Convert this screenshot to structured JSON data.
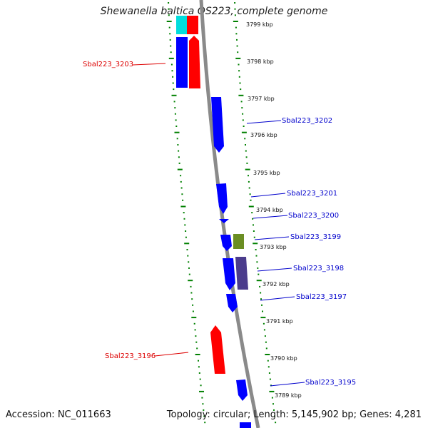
{
  "title": "Shewanella baltica OS223, complete genome",
  "accession_text": "Accession: NC_011663",
  "summary_text": "Topology: circular; Length: 5,145,902 bp; Genes: 4,281",
  "kbp_labels": [
    "3799 kbp",
    "3798 kbp",
    "3797 kbp",
    "3796 kbp",
    "3795 kbp",
    "3794 kbp",
    "3793 kbp",
    "3792 kbp",
    "3791 kbp",
    "3790 kbp",
    "3789 kbp"
  ],
  "gene_labels": [
    {
      "text": "Sbal223_3203",
      "color": "#dd0000"
    },
    {
      "text": "Sbal223_3202",
      "color": "#0000cc"
    },
    {
      "text": "Sbal223_3201",
      "color": "#0000cc"
    },
    {
      "text": "Sbal223_3200",
      "color": "#0000cc"
    },
    {
      "text": "Sbal223_3199",
      "color": "#0000cc"
    },
    {
      "text": "Sbal223_3198",
      "color": "#0000cc"
    },
    {
      "text": "Sbal223_3197",
      "color": "#0000cc"
    },
    {
      "text": "Sbal223_3196",
      "color": "#dd0000"
    },
    {
      "text": "Sbal223_3195",
      "color": "#0000cc"
    }
  ],
  "colors": {
    "blue_feature": "#0000ff",
    "red_feature": "#ff0000",
    "cyan_feature": "#00e5e5",
    "olive_feature": "#6b8e23",
    "purple_feature": "#4b3c8c",
    "backbone": "#888888",
    "tick_green": "#008000"
  }
}
